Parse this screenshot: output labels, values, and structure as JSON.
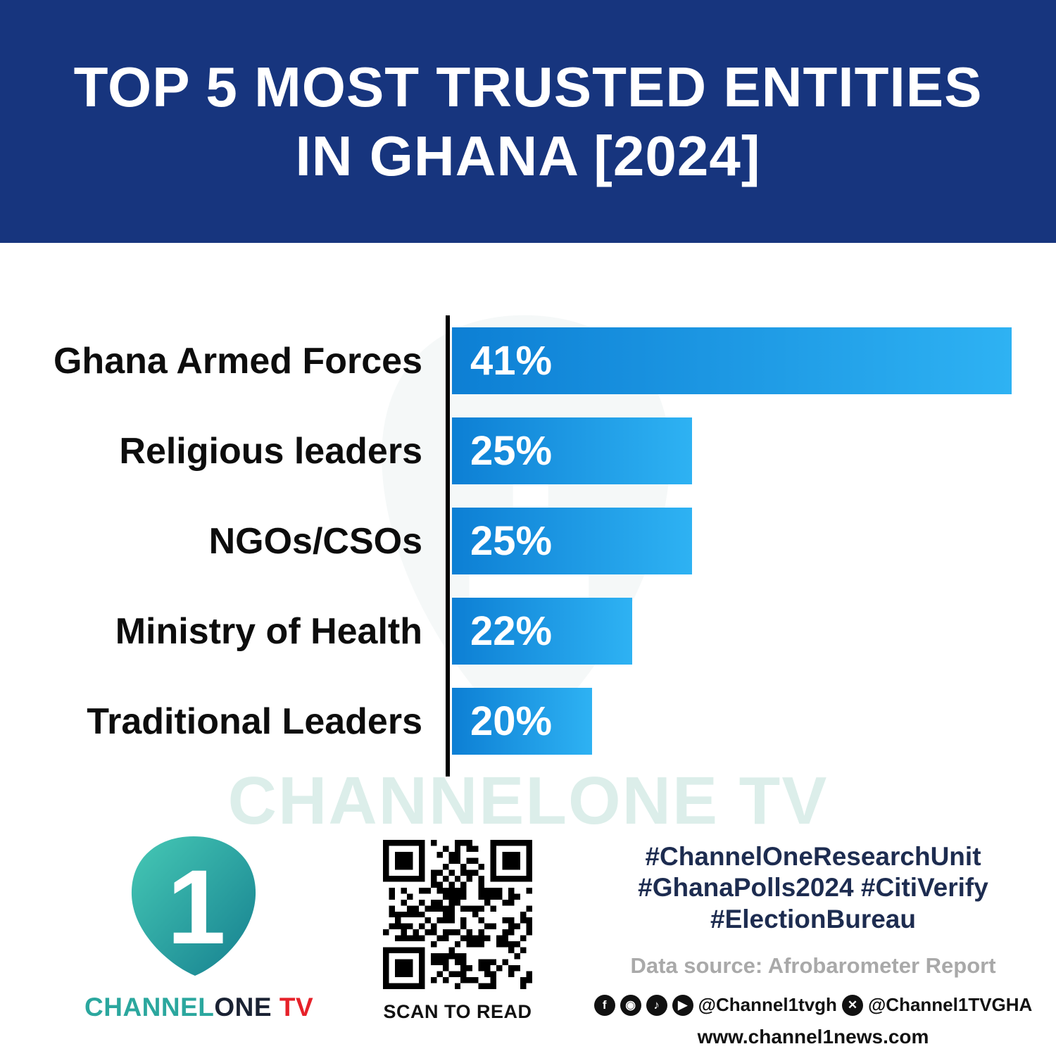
{
  "header": {
    "title_line1": "TOP 5 MOST TRUSTED ENTITIES",
    "title_line2": "IN GHANA [2024]"
  },
  "chart_data": {
    "type": "bar",
    "orientation": "horizontal",
    "title": "TOP 5 MOST TRUSTED ENTITIES IN GHANA [2024]",
    "categories": [
      "Ghana Armed Forces",
      "Religious leaders",
      "NGOs/CSOs",
      "Ministry of Health",
      "Traditional Leaders"
    ],
    "values": [
      41,
      25,
      25,
      22,
      20
    ],
    "value_labels": [
      "41%",
      "25%",
      "25%",
      "22%",
      "20%"
    ],
    "value_unit": "%",
    "legend": "none",
    "grid": "off",
    "colors": {
      "bar_gradient_start": "#0d7fd4",
      "bar_gradient_end": "#2eb2f3",
      "axis": "#000000",
      "label": "#0d0d0d",
      "value_text": "#ffffff"
    },
    "layout_hints": {
      "bars_left_to_right": true,
      "bar_scale_min": 13,
      "bar_scale_max": 41
    }
  },
  "watermark": {
    "text": "CHANNELONE TV"
  },
  "footer": {
    "logo": {
      "channel": "CHANNEL",
      "one": "ONE",
      "tv": " TV",
      "numeral": "1",
      "teal": "#2ba79e",
      "red": "#e62129"
    },
    "qr_caption": "SCAN TO READ",
    "hashtags_line1": "#ChannelOneResearchUnit",
    "hashtags_line2": "#GhanaPolls2024 #CitiVerify",
    "hashtags_line3": "#ElectionBureau",
    "data_source": "Data source: Afrobarometer Report",
    "social": {
      "glyphs": {
        "facebook": "f",
        "instagram": "◉",
        "tiktok": "♪",
        "youtube": "▶",
        "x": "✕"
      },
      "handle1": "@Channel1tvgh",
      "handle2": "@Channel1TVGHA"
    },
    "website": "www.channel1news.com"
  },
  "colors": {
    "header_bg": "#17357E",
    "hashtag_text": "#1d2c50",
    "data_source_text": "#a9a9a9",
    "watermark_text": "#dceeea"
  }
}
